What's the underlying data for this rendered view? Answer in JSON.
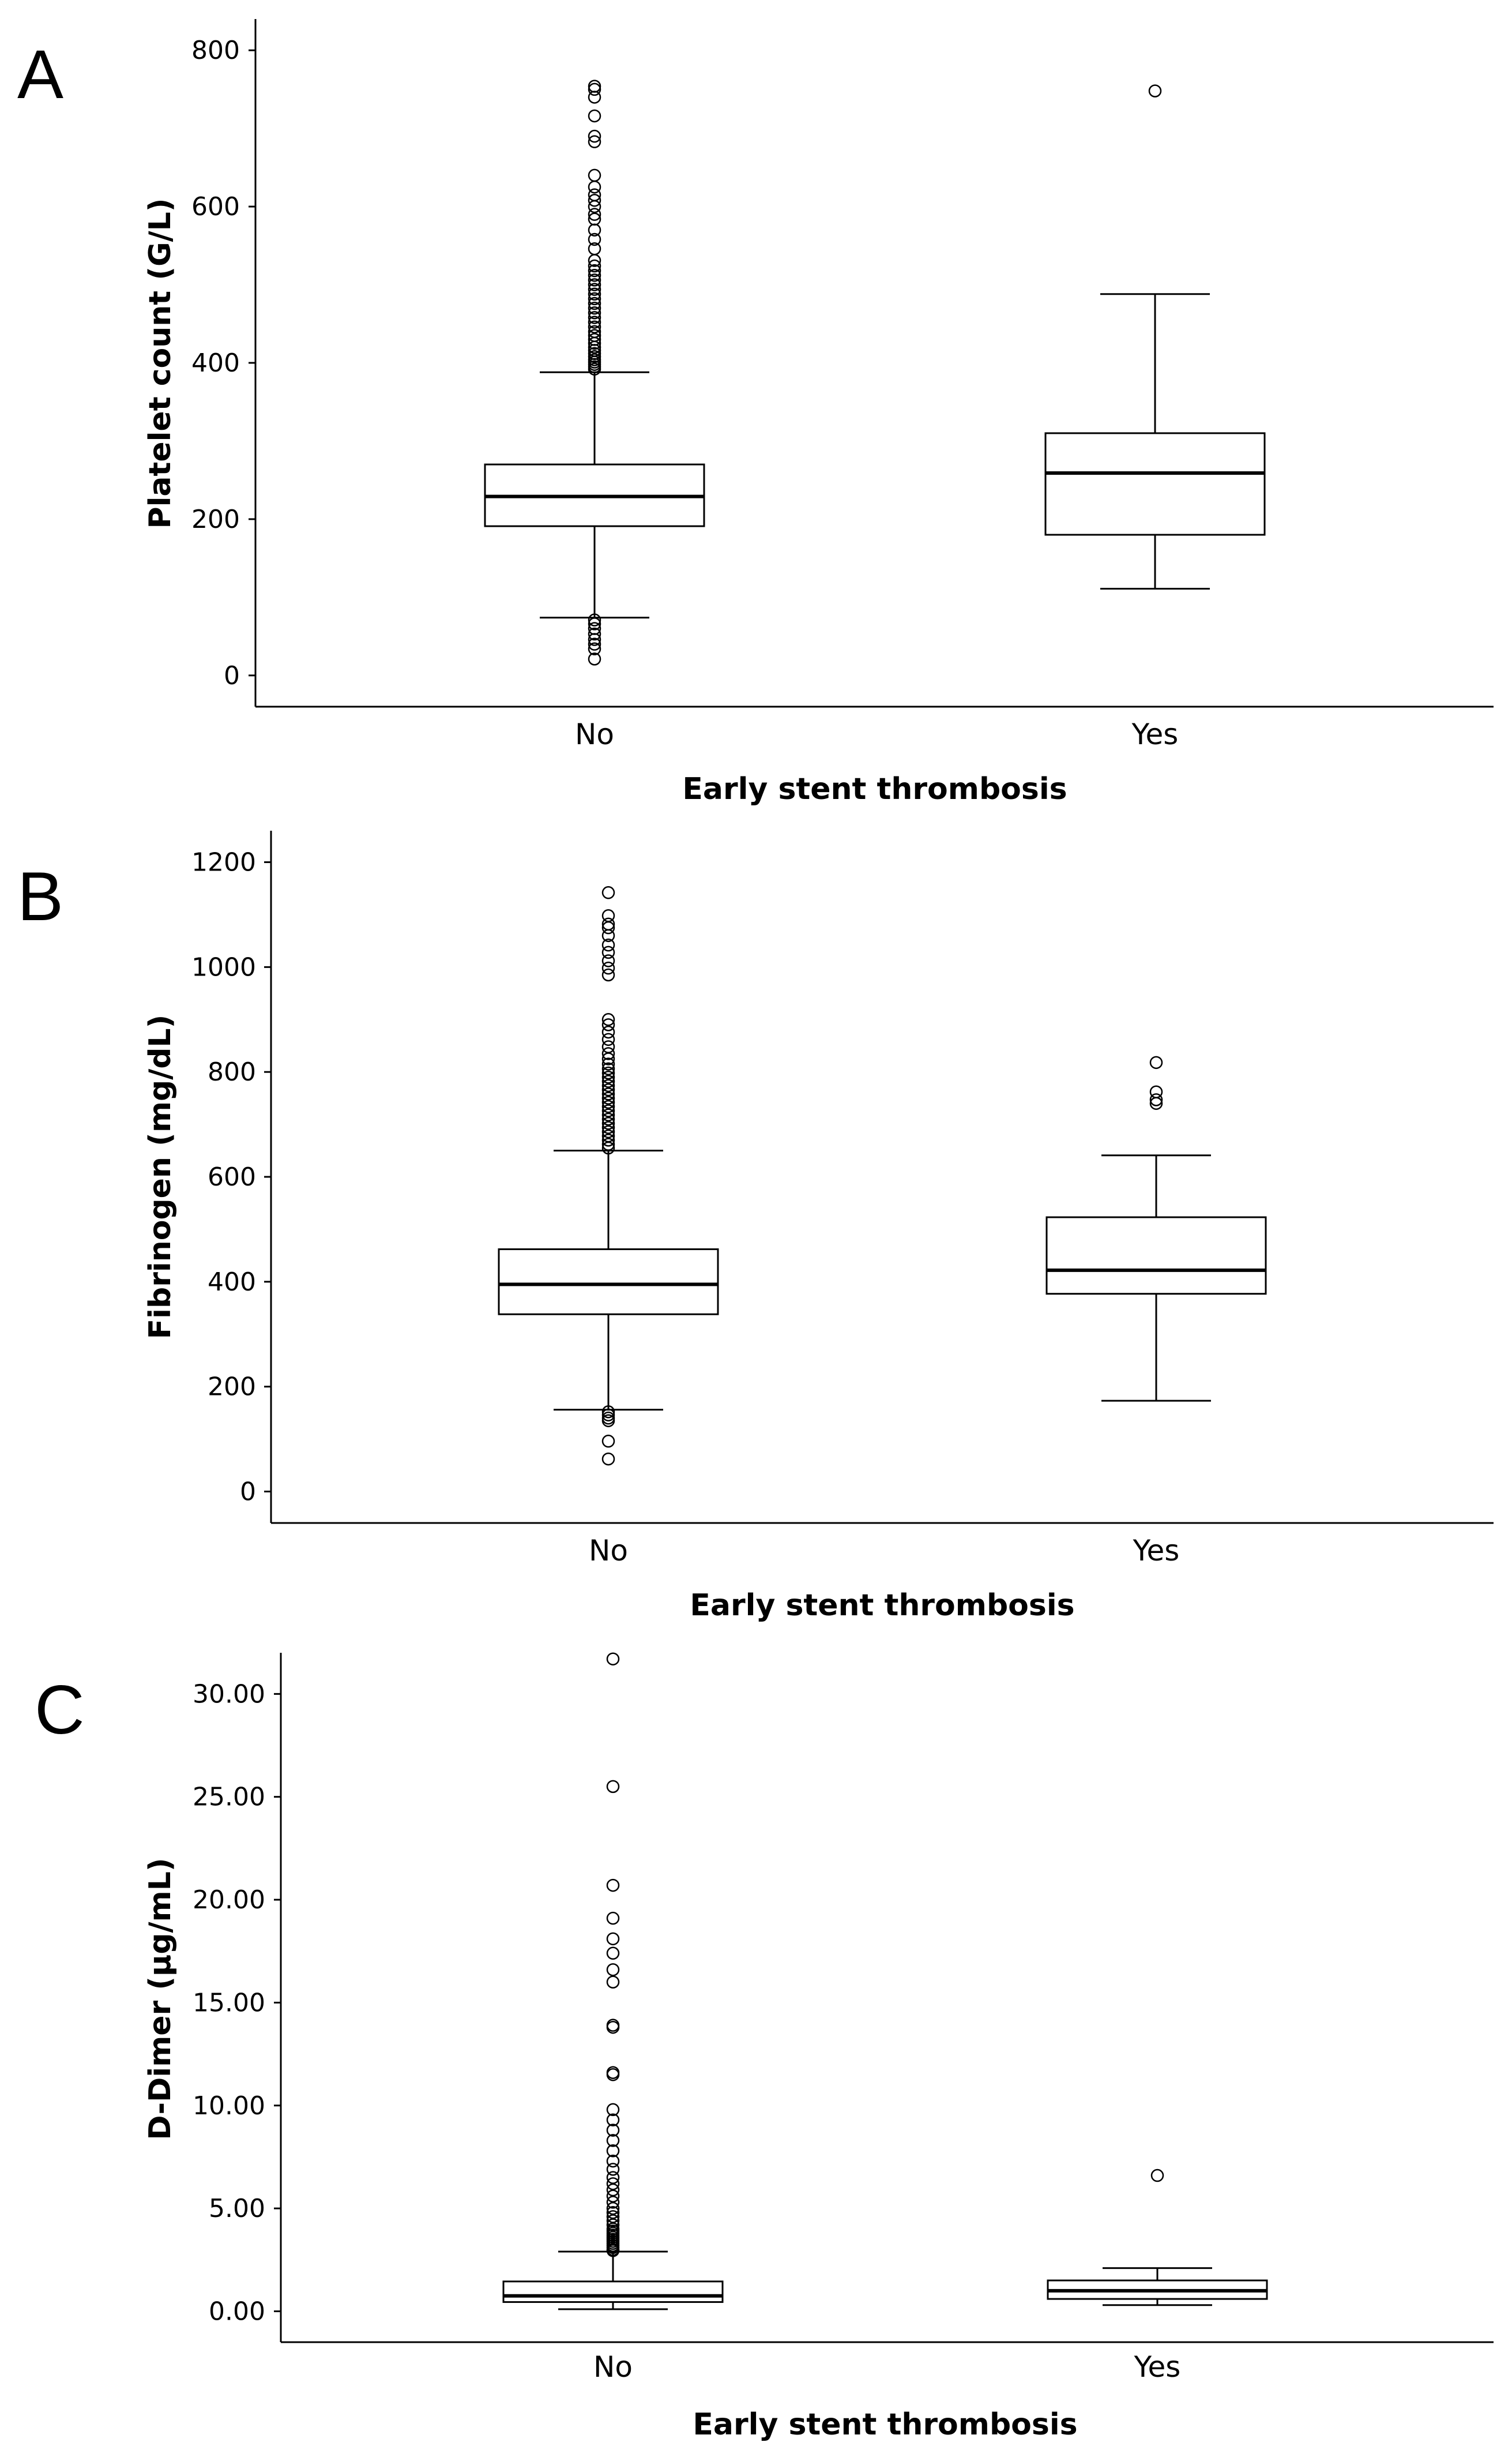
{
  "chart_data": [
    {
      "type": "boxplot",
      "panel": "A",
      "xlabel": "Early stent thrombosis",
      "ylabel": "Platelet count (G/L)",
      "ylim": [
        -40,
        840
      ],
      "yticks": [
        0,
        200,
        400,
        600,
        800
      ],
      "ytick_labels": [
        "0",
        "200",
        "400",
        "600",
        "800"
      ],
      "categories": [
        "No",
        "Yes"
      ],
      "boxes": [
        {
          "category": "No",
          "min": 74,
          "q1": 191,
          "median": 229,
          "q3": 270,
          "max": 388,
          "outliers": [
            21,
            34,
            40,
            46,
            53,
            60,
            66,
            71,
            392,
            395,
            398,
            401,
            404,
            408,
            412,
            416,
            420,
            425,
            430,
            435,
            440,
            446,
            452,
            458,
            464,
            470,
            476,
            482,
            488,
            494,
            500,
            506,
            512,
            518,
            524,
            531,
            546,
            558,
            570,
            584,
            590,
            600,
            608,
            615,
            625,
            640,
            683,
            690,
            716,
            740,
            750,
            754
          ]
        },
        {
          "category": "Yes",
          "min": 111,
          "q1": 180,
          "median": 259,
          "q3": 310,
          "max": 488,
          "outliers": [
            748
          ]
        }
      ]
    },
    {
      "type": "boxplot",
      "panel": "B",
      "xlabel": "Early stent thrombosis",
      "ylabel": "Fibrinogen (mg/dL)",
      "ylim": [
        -60,
        1260
      ],
      "yticks": [
        0,
        200,
        400,
        600,
        800,
        1000,
        1200
      ],
      "ytick_labels": [
        "0",
        "200",
        "400",
        "600",
        "800",
        "1000",
        "1200"
      ],
      "categories": [
        "No",
        "Yes"
      ],
      "boxes": [
        {
          "category": "No",
          "min": 156,
          "q1": 338,
          "median": 395,
          "q3": 462,
          "max": 650,
          "outliers": [
            62,
            96,
            135,
            140,
            146,
            152,
            655,
            662,
            670,
            678,
            686,
            694,
            702,
            710,
            718,
            726,
            734,
            742,
            750,
            758,
            766,
            774,
            782,
            790,
            798,
            806,
            815,
            825,
            835,
            848,
            862,
            876,
            890,
            900,
            985,
            998,
            1012,
            1028,
            1042,
            1060,
            1075,
            1082,
            1098,
            1142
          ]
        },
        {
          "category": "Yes",
          "min": 173,
          "q1": 377,
          "median": 422,
          "q3": 523,
          "max": 641,
          "outliers": [
            740,
            747,
            762,
            818
          ]
        }
      ]
    },
    {
      "type": "boxplot",
      "panel": "C",
      "xlabel": "Early stent thrombosis",
      "ylabel": "D-Dimer (µg/mL)",
      "ylim": [
        -1.5,
        32.0
      ],
      "yticks": [
        0,
        5,
        10,
        15,
        20,
        25,
        30
      ],
      "ytick_labels": [
        "0.00",
        "5.00",
        "10.00",
        "15.00",
        "20.00",
        "25.00",
        "30.00"
      ],
      "categories": [
        "No",
        "Yes"
      ],
      "boxes": [
        {
          "category": "No",
          "min": 0.1,
          "q1": 0.45,
          "median": 0.75,
          "q3": 1.45,
          "max": 2.9,
          "outliers": [
            2.95,
            3.0,
            3.1,
            3.2,
            3.3,
            3.4,
            3.5,
            3.6,
            3.7,
            3.8,
            3.9,
            4.0,
            4.2,
            4.4,
            4.6,
            4.8,
            5.0,
            5.3,
            5.6,
            5.9,
            6.2,
            6.5,
            6.9,
            7.3,
            7.8,
            8.3,
            8.8,
            9.3,
            9.8,
            11.5,
            11.6,
            13.8,
            13.9,
            16.0,
            16.6,
            17.4,
            18.1,
            19.1,
            20.7,
            25.5,
            31.7
          ]
        },
        {
          "category": "Yes",
          "min": 0.3,
          "q1": 0.6,
          "median": 1.0,
          "q3": 1.5,
          "max": 2.1,
          "outliers": [
            6.6
          ]
        }
      ]
    }
  ]
}
